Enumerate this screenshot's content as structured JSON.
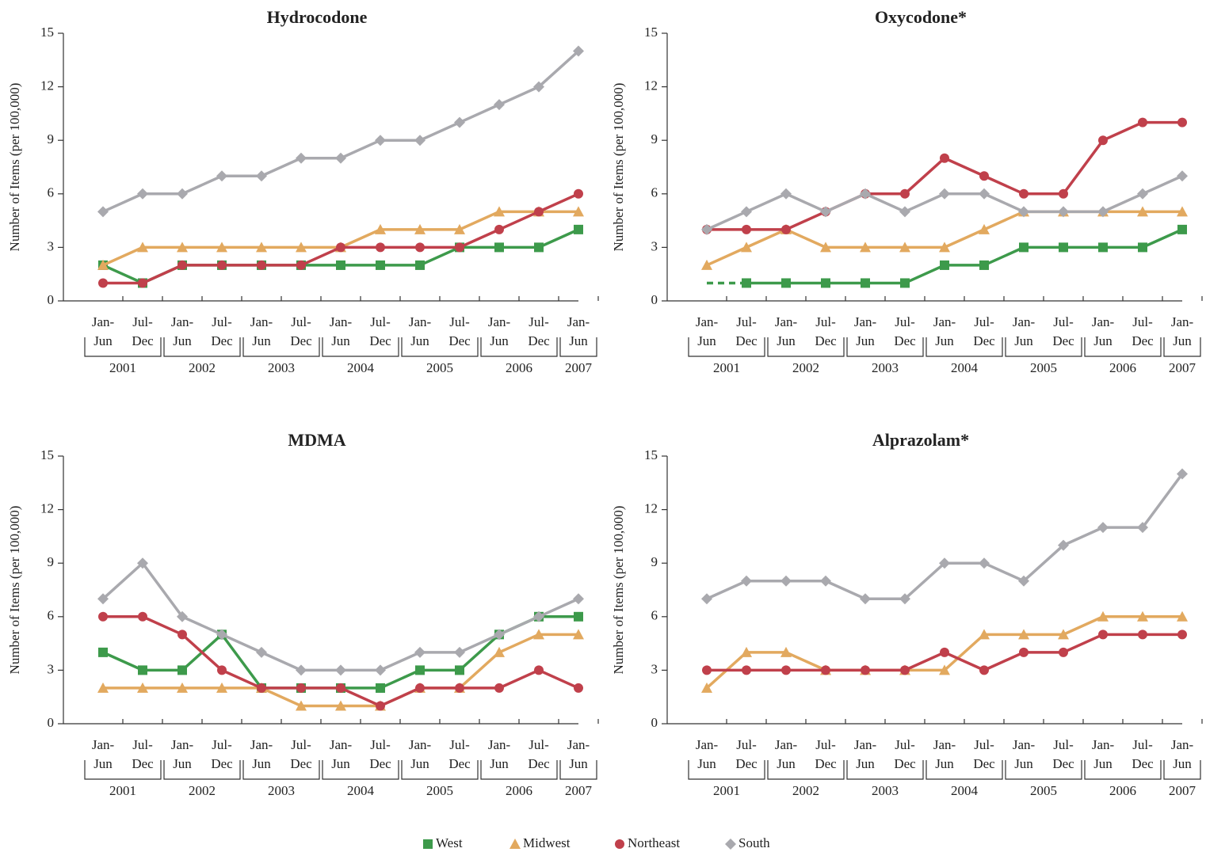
{
  "chart_data": [
    {
      "type": "line",
      "title": "Hydrocodone",
      "ylabel": "Number of Items (per 100,000)",
      "categories": [
        [
          "Jan-",
          "Jun"
        ],
        [
          "Jul-",
          "Dec"
        ],
        [
          "Jan-",
          "Jun"
        ],
        [
          "Jul-",
          "Dec"
        ],
        [
          "Jan-",
          "Jun"
        ],
        [
          "Jul-",
          "Dec"
        ],
        [
          "Jan-",
          "Jun"
        ],
        [
          "Jul-",
          "Dec"
        ],
        [
          "Jan-",
          "Jun"
        ],
        [
          "Jul-",
          "Dec"
        ],
        [
          "Jan-",
          "Jun"
        ],
        [
          "Jul-",
          "Dec"
        ],
        [
          "Jan-",
          "Jun"
        ]
      ],
      "years": [
        "2001",
        null,
        "2002",
        null,
        "2003",
        null,
        "2004",
        null,
        "2005",
        null,
        "2006",
        null,
        "2007"
      ],
      "ylim": [
        0,
        15
      ],
      "yticks": [
        0,
        3,
        6,
        9,
        12,
        15
      ],
      "series": [
        {
          "name": "West",
          "color": "#3d9a4b",
          "marker": "square",
          "values": [
            2,
            1,
            2,
            2,
            2,
            2,
            2,
            2,
            2,
            3,
            3,
            3,
            4
          ]
        },
        {
          "name": "Midwest",
          "color": "#e2a95f",
          "marker": "triangle",
          "values": [
            2,
            3,
            3,
            3,
            3,
            3,
            3,
            4,
            4,
            4,
            5,
            5,
            5
          ]
        },
        {
          "name": "Northeast",
          "color": "#c0404b",
          "marker": "circle",
          "values": [
            1,
            1,
            2,
            2,
            2,
            2,
            3,
            3,
            3,
            3,
            4,
            5,
            6
          ]
        },
        {
          "name": "South",
          "color": "#a9a9ae",
          "marker": "diamond",
          "values": [
            5,
            6,
            6,
            7,
            7,
            8,
            8,
            9,
            9,
            10,
            11,
            12,
            14
          ]
        }
      ]
    },
    {
      "type": "line",
      "title": "Oxycodone*",
      "ylabel": "Number of Items (per 100,000)",
      "categories": [
        [
          "Jan-",
          "Jun"
        ],
        [
          "Jul-",
          "Dec"
        ],
        [
          "Jan-",
          "Jun"
        ],
        [
          "Jul-",
          "Dec"
        ],
        [
          "Jan-",
          "Jun"
        ],
        [
          "Jul-",
          "Dec"
        ],
        [
          "Jan-",
          "Jun"
        ],
        [
          "Jul-",
          "Dec"
        ],
        [
          "Jan-",
          "Jun"
        ],
        [
          "Jul-",
          "Dec"
        ],
        [
          "Jan-",
          "Jun"
        ],
        [
          "Jul-",
          "Dec"
        ],
        [
          "Jan-",
          "Jun"
        ]
      ],
      "years": [
        "2001",
        null,
        "2002",
        null,
        "2003",
        null,
        "2004",
        null,
        "2005",
        null,
        "2006",
        null,
        "2007"
      ],
      "ylim": [
        0,
        15
      ],
      "yticks": [
        0,
        3,
        6,
        9,
        12,
        15
      ],
      "series": [
        {
          "name": "West",
          "color": "#3d9a4b",
          "marker": "square",
          "dashed_until": 1,
          "values": [
            1,
            1,
            1,
            1,
            1,
            1,
            2,
            2,
            3,
            3,
            3,
            3,
            4
          ]
        },
        {
          "name": "Midwest",
          "color": "#e2a95f",
          "marker": "triangle",
          "values": [
            2,
            3,
            4,
            3,
            3,
            3,
            3,
            4,
            5,
            5,
            5,
            5,
            5
          ]
        },
        {
          "name": "Northeast",
          "color": "#c0404b",
          "marker": "circle",
          "values": [
            4,
            4,
            4,
            5,
            6,
            6,
            8,
            7,
            6,
            6,
            9,
            10,
            10
          ]
        },
        {
          "name": "South",
          "color": "#a9a9ae",
          "marker": "diamond",
          "values": [
            4,
            5,
            6,
            5,
            6,
            5,
            6,
            6,
            5,
            5,
            5,
            6,
            7
          ]
        }
      ]
    },
    {
      "type": "line",
      "title": "MDMA",
      "ylabel": "Number of Items (per 100,000)",
      "categories": [
        [
          "Jan-",
          "Jun"
        ],
        [
          "Jul-",
          "Dec"
        ],
        [
          "Jan-",
          "Jun"
        ],
        [
          "Jul-",
          "Dec"
        ],
        [
          "Jan-",
          "Jun"
        ],
        [
          "Jul-",
          "Dec"
        ],
        [
          "Jan-",
          "Jun"
        ],
        [
          "Jul-",
          "Dec"
        ],
        [
          "Jan-",
          "Jun"
        ],
        [
          "Jul-",
          "Dec"
        ],
        [
          "Jan-",
          "Jun"
        ],
        [
          "Jul-",
          "Dec"
        ],
        [
          "Jan-",
          "Jun"
        ]
      ],
      "years": [
        "2001",
        null,
        "2002",
        null,
        "2003",
        null,
        "2004",
        null,
        "2005",
        null,
        "2006",
        null,
        "2007"
      ],
      "ylim": [
        0,
        15
      ],
      "yticks": [
        0,
        3,
        6,
        9,
        12,
        15
      ],
      "series": [
        {
          "name": "West",
          "color": "#3d9a4b",
          "marker": "square",
          "values": [
            4,
            3,
            3,
            5,
            2,
            2,
            2,
            2,
            3,
            3,
            5,
            6,
            6
          ]
        },
        {
          "name": "Midwest",
          "color": "#e2a95f",
          "marker": "triangle",
          "values": [
            2,
            2,
            2,
            2,
            2,
            1,
            1,
            1,
            2,
            2,
            4,
            5,
            5
          ]
        },
        {
          "name": "Northeast",
          "color": "#c0404b",
          "marker": "circle",
          "values": [
            6,
            6,
            5,
            3,
            2,
            2,
            2,
            1,
            2,
            2,
            2,
            3,
            2
          ]
        },
        {
          "name": "South",
          "color": "#a9a9ae",
          "marker": "diamond",
          "values": [
            7,
            9,
            6,
            5,
            4,
            3,
            3,
            3,
            4,
            4,
            5,
            6,
            7
          ]
        }
      ]
    },
    {
      "type": "line",
      "title": "Alprazolam*",
      "ylabel": "Number of Items (per 100,000)",
      "categories": [
        [
          "Jan-",
          "Jun"
        ],
        [
          "Jul-",
          "Dec"
        ],
        [
          "Jan-",
          "Jun"
        ],
        [
          "Jul-",
          "Dec"
        ],
        [
          "Jan-",
          "Jun"
        ],
        [
          "Jul-",
          "Dec"
        ],
        [
          "Jan-",
          "Jun"
        ],
        [
          "Jul-",
          "Dec"
        ],
        [
          "Jan-",
          "Jun"
        ],
        [
          "Jul-",
          "Dec"
        ],
        [
          "Jan-",
          "Jun"
        ],
        [
          "Jul-",
          "Dec"
        ],
        [
          "Jan-",
          "Jun"
        ]
      ],
      "years": [
        "2001",
        null,
        "2002",
        null,
        "2003",
        null,
        "2004",
        null,
        "2005",
        null,
        "2006",
        null,
        "2007"
      ],
      "ylim": [
        0,
        15
      ],
      "yticks": [
        0,
        3,
        6,
        9,
        12,
        15
      ],
      "series": [
        {
          "name": "Midwest",
          "color": "#e2a95f",
          "marker": "triangle",
          "values": [
            2,
            4,
            4,
            3,
            3,
            3,
            3,
            5,
            5,
            5,
            6,
            6,
            6
          ]
        },
        {
          "name": "Northeast",
          "color": "#c0404b",
          "marker": "circle",
          "values": [
            3,
            3,
            3,
            3,
            3,
            3,
            4,
            3,
            4,
            4,
            5,
            5,
            5
          ]
        },
        {
          "name": "South",
          "color": "#a9a9ae",
          "marker": "diamond",
          "values": [
            7,
            8,
            8,
            8,
            7,
            7,
            9,
            9,
            8,
            10,
            11,
            11,
            14
          ]
        }
      ]
    }
  ]
}
